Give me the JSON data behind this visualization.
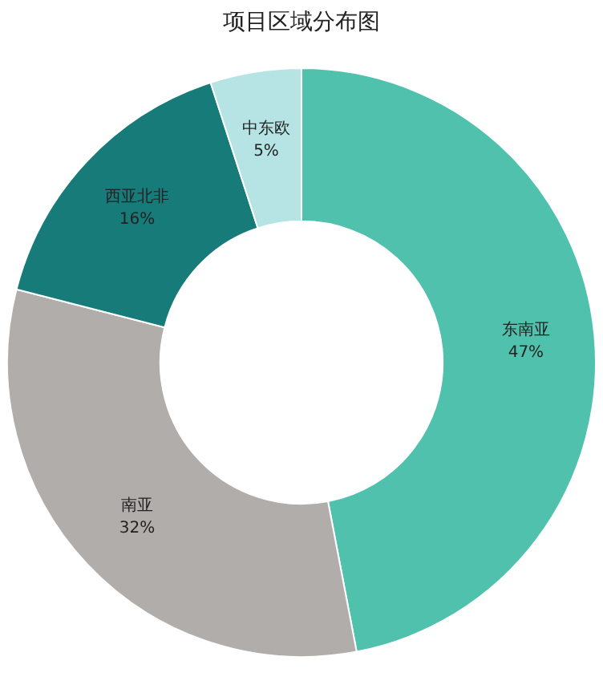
{
  "chart_data": {
    "type": "donut",
    "title": "项目区域分布图",
    "categories": [
      "东南亚",
      "南亚",
      "西亚北非",
      "中东欧"
    ],
    "values": [
      47,
      32,
      16,
      5
    ],
    "colors": [
      "#4fc1ad",
      "#b1adab",
      "#167b79",
      "#b6e4e4"
    ],
    "value_labels": [
      "47%",
      "32%",
      "16%",
      "5%"
    ],
    "legend": false
  }
}
